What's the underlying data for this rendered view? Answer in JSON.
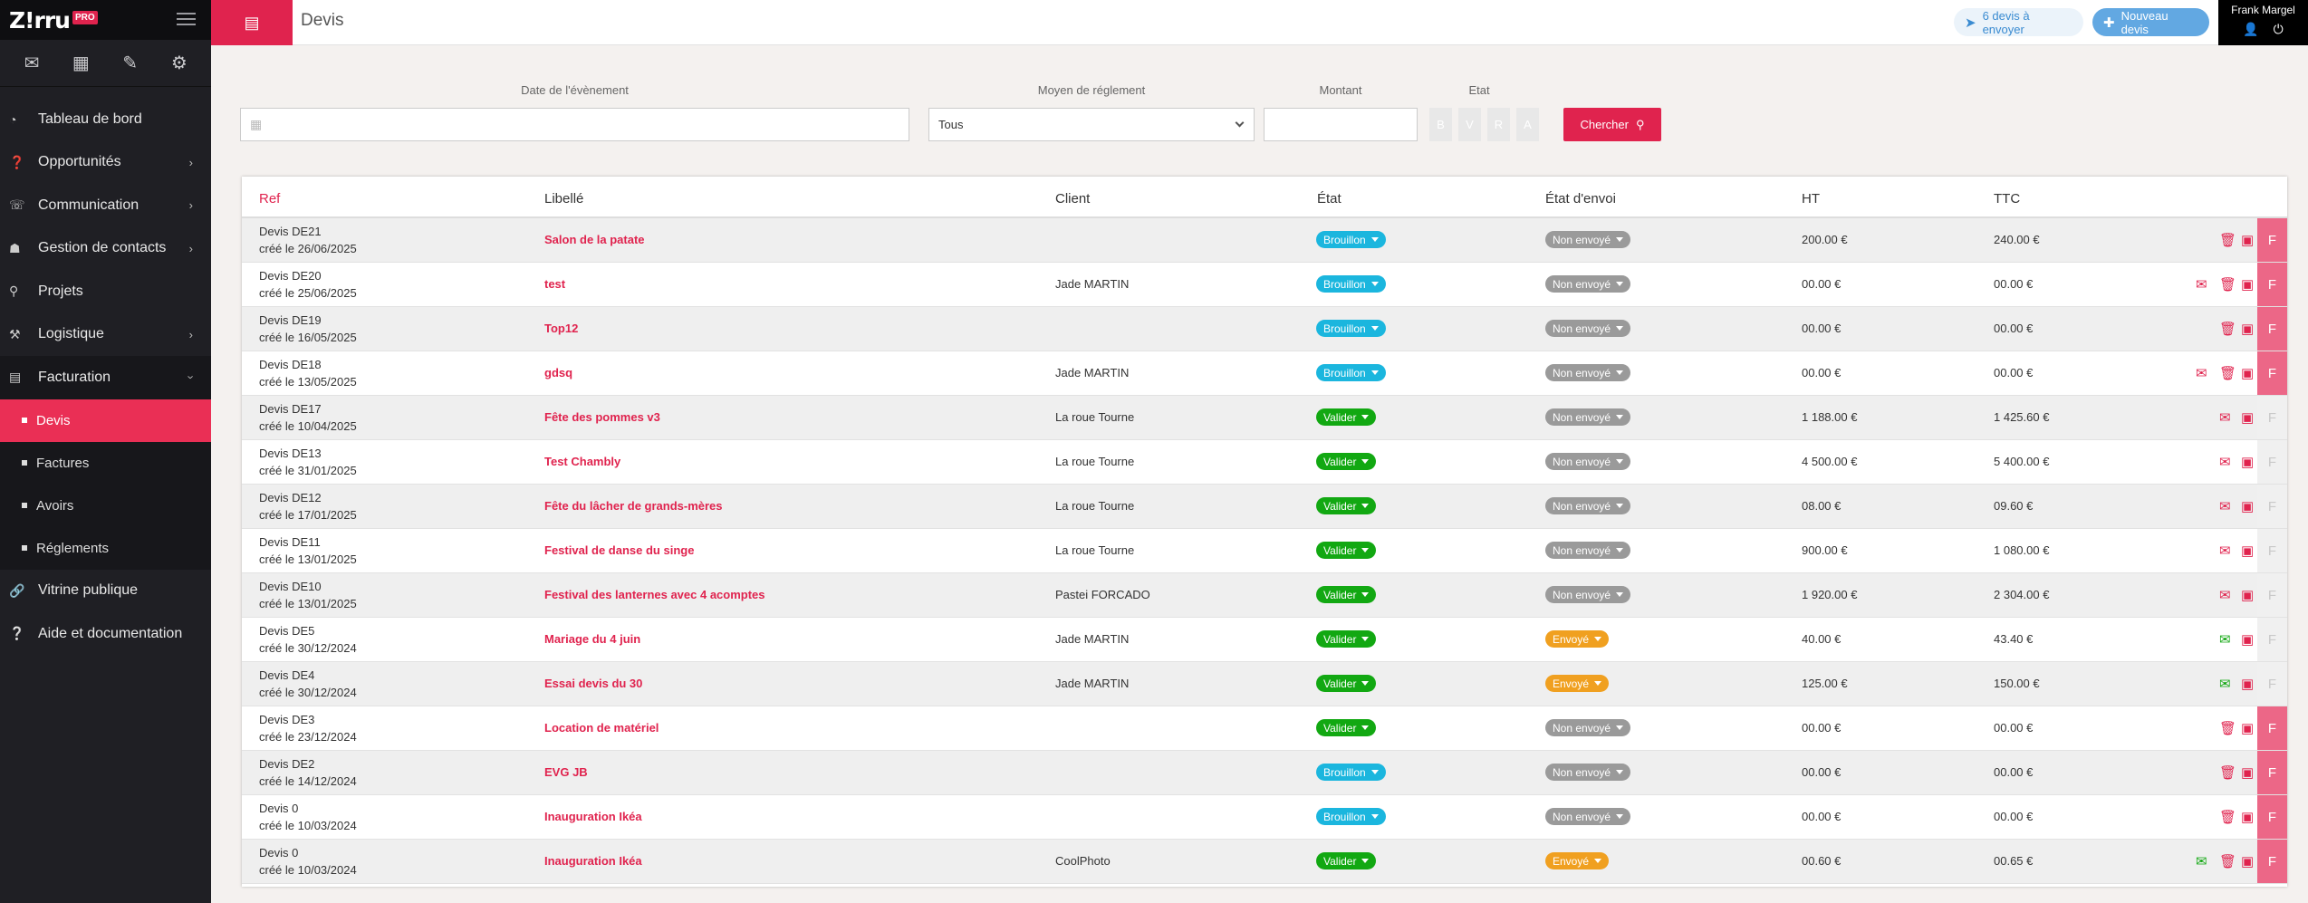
{
  "app": {
    "logo_text": "Z!rru",
    "logo_badge": "PRO"
  },
  "sidebar": {
    "quick_icons": [
      "mail-icon",
      "calendar-icon",
      "pencil-icon",
      "gear-icon"
    ],
    "items": [
      {
        "label": "Tableau de bord",
        "icon": "dashboard-icon",
        "has_chevron": false
      },
      {
        "label": "Opportunités",
        "icon": "question-icon",
        "has_chevron": true
      },
      {
        "label": "Communication",
        "icon": "chat-icon",
        "has_chevron": true
      },
      {
        "label": "Gestion de contacts",
        "icon": "contacts-icon",
        "has_chevron": true
      },
      {
        "label": "Projets",
        "icon": "projects-icon",
        "has_chevron": false
      },
      {
        "label": "Logistique",
        "icon": "cart-icon",
        "has_chevron": true
      },
      {
        "label": "Facturation",
        "icon": "invoice-icon",
        "has_chevron": true,
        "open": true
      }
    ],
    "sub_items": [
      {
        "label": "Devis",
        "active": true
      },
      {
        "label": "Factures",
        "active": false
      },
      {
        "label": "Avoirs",
        "active": false
      },
      {
        "label": "Réglements",
        "active": false
      }
    ],
    "bottom_items": [
      {
        "label": "Vitrine publique",
        "icon": "link-icon"
      },
      {
        "label": "Aide et documentation",
        "icon": "help-icon"
      }
    ]
  },
  "header": {
    "title": "Devis",
    "to_send_label": "6 devis à envoyer",
    "new_label": "Nouveau devis",
    "user_name": "Frank Margel"
  },
  "filters": {
    "date_label": "Date de l'évènement",
    "payment_label": "Moyen de réglement",
    "payment_value": "Tous",
    "amount_label": "Montant",
    "state_label": "Etat",
    "state_buttons": [
      "B",
      "V",
      "R",
      "A"
    ],
    "search_label": "Chercher"
  },
  "table": {
    "headers": {
      "ref": "Ref",
      "libelle": "Libellé",
      "client": "Client",
      "etat": "État",
      "envoi": "État d'envoi",
      "ht": "HT",
      "ttc": "TTC"
    },
    "rows": [
      {
        "ref": "Devis DE21",
        "created": "créé le 26/06/2025",
        "libelle": "Salon de la patate",
        "client": "",
        "etat": "Brouillon",
        "envoi": "Non envoyé",
        "ht": "200.00 €",
        "ttc": "240.00 €",
        "actions": [
          "trash",
          "pdf"
        ],
        "f_active": true
      },
      {
        "ref": "Devis DE20",
        "created": "créé le 25/06/2025",
        "libelle": "test",
        "client": "Jade MARTIN",
        "etat": "Brouillon",
        "envoi": "Non envoyé",
        "ht": "00.00 €",
        "ttc": "00.00 €",
        "actions": [
          "mail",
          "trash",
          "pdf"
        ],
        "f_active": true
      },
      {
        "ref": "Devis DE19",
        "created": "créé le 16/05/2025",
        "libelle": "Top12",
        "client": "",
        "etat": "Brouillon",
        "envoi": "Non envoyé",
        "ht": "00.00 €",
        "ttc": "00.00 €",
        "actions": [
          "trash",
          "pdf"
        ],
        "f_active": true
      },
      {
        "ref": "Devis DE18",
        "created": "créé le 13/05/2025",
        "libelle": "gdsq",
        "client": "Jade MARTIN",
        "etat": "Brouillon",
        "envoi": "Non envoyé",
        "ht": "00.00 €",
        "ttc": "00.00 €",
        "actions": [
          "mail",
          "trash",
          "pdf"
        ],
        "f_active": true
      },
      {
        "ref": "Devis DE17",
        "created": "créé le 10/04/2025",
        "libelle": "Fête des pommes v3",
        "client": "La roue Tourne",
        "etat": "Valider",
        "envoi": "Non envoyé",
        "ht": "1 188.00 €",
        "ttc": "1 425.60 €",
        "actions": [
          "mail",
          "pdf"
        ],
        "f_active": false
      },
      {
        "ref": "Devis DE13",
        "created": "créé le 31/01/2025",
        "libelle": "Test Chambly",
        "client": "La roue Tourne",
        "etat": "Valider",
        "envoi": "Non envoyé",
        "ht": "4 500.00 €",
        "ttc": "5 400.00 €",
        "actions": [
          "mail",
          "pdf"
        ],
        "f_active": false
      },
      {
        "ref": "Devis DE12",
        "created": "créé le 17/01/2025",
        "libelle": "Fête du lâcher de grands-mères",
        "client": "La roue Tourne",
        "etat": "Valider",
        "envoi": "Non envoyé",
        "ht": "08.00 €",
        "ttc": "09.60 €",
        "actions": [
          "mail",
          "pdf"
        ],
        "f_active": false
      },
      {
        "ref": "Devis DE11",
        "created": "créé le 13/01/2025",
        "libelle": "Festival de danse du singe",
        "client": "La roue Tourne",
        "etat": "Valider",
        "envoi": "Non envoyé",
        "ht": "900.00 €",
        "ttc": "1 080.00 €",
        "actions": [
          "mail",
          "pdf"
        ],
        "f_active": false
      },
      {
        "ref": "Devis DE10",
        "created": "créé le 13/01/2025",
        "libelle": "Festival des lanternes avec 4 acomptes",
        "client": "Pastei FORCADO",
        "etat": "Valider",
        "envoi": "Non envoyé",
        "ht": "1 920.00 €",
        "ttc": "2 304.00 €",
        "actions": [
          "mail",
          "pdf"
        ],
        "f_active": false
      },
      {
        "ref": "Devis DE5",
        "created": "créé le 30/12/2024",
        "libelle": "Mariage du 4 juin",
        "client": "Jade MARTIN",
        "etat": "Valider",
        "envoi": "Envoyé",
        "ht": "40.00 €",
        "ttc": "43.40 €",
        "actions": [
          "mail-green",
          "pdf"
        ],
        "f_active": false
      },
      {
        "ref": "Devis DE4",
        "created": "créé le 30/12/2024",
        "libelle": "Essai devis du 30",
        "client": "Jade MARTIN",
        "etat": "Valider",
        "envoi": "Envoyé",
        "ht": "125.00 €",
        "ttc": "150.00 €",
        "actions": [
          "mail-green",
          "pdf"
        ],
        "f_active": false
      },
      {
        "ref": "Devis DE3",
        "created": "créé le 23/12/2024",
        "libelle": "Location de matériel",
        "client": "",
        "etat": "Valider",
        "envoi": "Non envoyé",
        "ht": "00.00 €",
        "ttc": "00.00 €",
        "actions": [
          "trash",
          "pdf"
        ],
        "f_active": true
      },
      {
        "ref": "Devis DE2",
        "created": "créé le 14/12/2024",
        "libelle": "EVG JB",
        "client": "",
        "etat": "Brouillon",
        "envoi": "Non envoyé",
        "ht": "00.00 €",
        "ttc": "00.00 €",
        "actions": [
          "trash",
          "pdf"
        ],
        "f_active": true
      },
      {
        "ref": "Devis 0",
        "created": "créé le 10/03/2024",
        "libelle": "Inauguration Ikéa",
        "client": "",
        "etat": "Brouillon",
        "envoi": "Non envoyé",
        "ht": "00.00 €",
        "ttc": "00.00 €",
        "actions": [
          "trash",
          "pdf"
        ],
        "f_active": true
      },
      {
        "ref": "Devis 0",
        "created": "créé le 10/03/2024",
        "libelle": "Inauguration Ikéa",
        "client": "CoolPhoto",
        "etat": "Valider",
        "envoi": "Envoyé",
        "ht": "00.60 €",
        "ttc": "00.65 €",
        "actions": [
          "mail-green",
          "trash",
          "pdf"
        ],
        "f_active": true
      }
    ],
    "f_label": "F"
  },
  "colors": {
    "brand": "#e0234e",
    "brouillon": "#1bb6de",
    "valider": "#12a812",
    "non_envoye": "#9a9a9a",
    "envoye": "#f0a020",
    "f_active": "#ec6787",
    "f_inactive": "#f0f0f0"
  }
}
